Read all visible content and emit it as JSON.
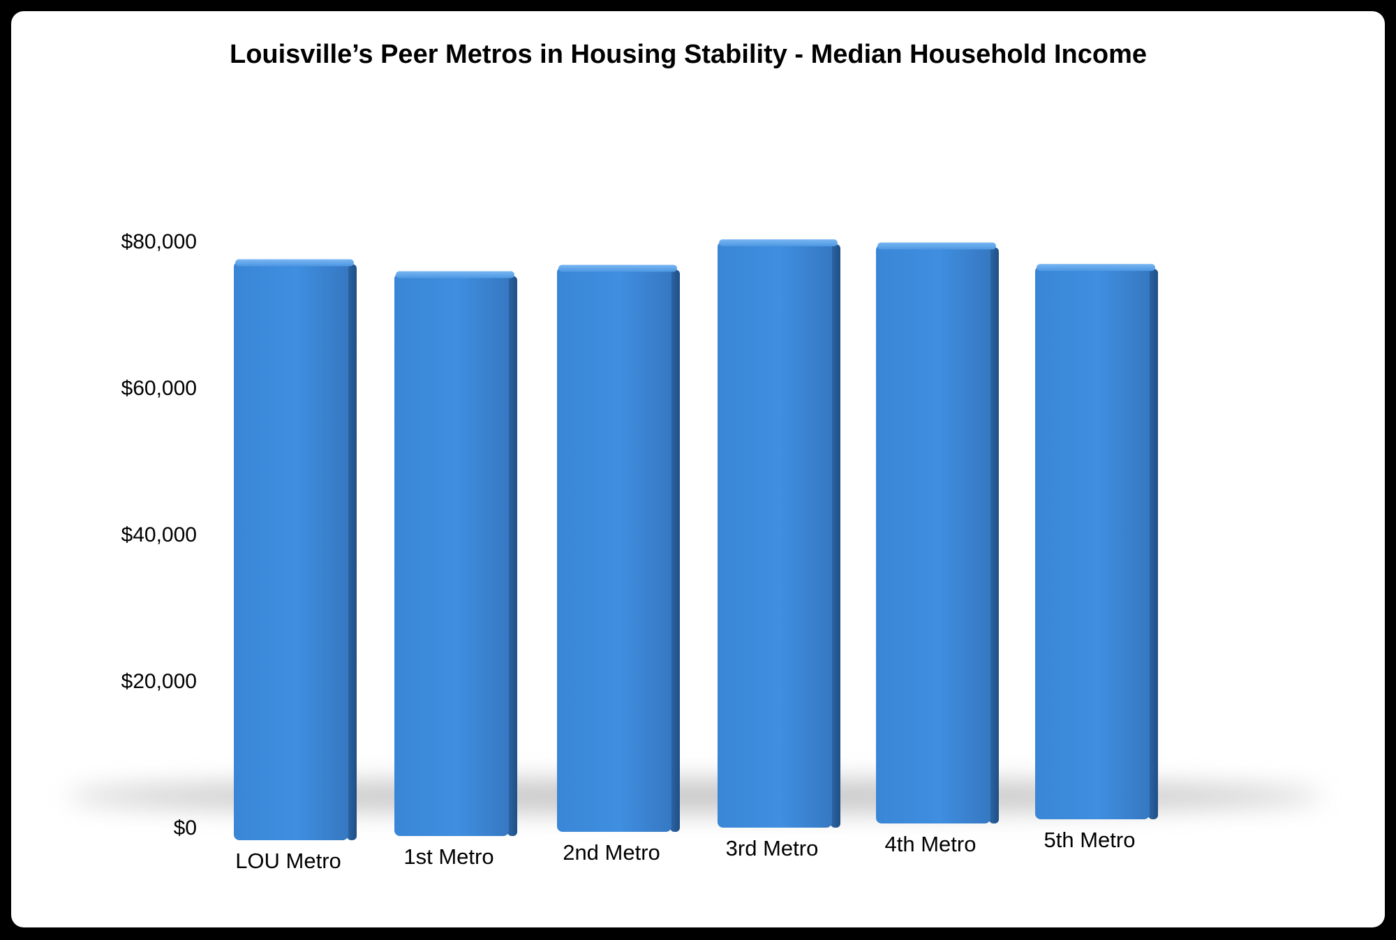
{
  "chart_data": {
    "type": "bar",
    "title": "Louisville’s Peer Metros in Housing Stability - Median Household Income",
    "xlabel": "",
    "ylabel": "",
    "categories": [
      "LOU Metro",
      "1st Metro",
      "2nd Metro",
      "3rd Metro",
      "4th Metro",
      "5th Metro"
    ],
    "values": [
      79000,
      76800,
      77100,
      80000,
      79000,
      75500
    ],
    "ylim": [
      0,
      80000
    ],
    "yticks": [
      "$0",
      "$20,000",
      "$40,000",
      "$60,000",
      "$80,000"
    ],
    "grid": false,
    "legend": "none",
    "style": "3d",
    "bar_color": "#3d8bdc"
  }
}
